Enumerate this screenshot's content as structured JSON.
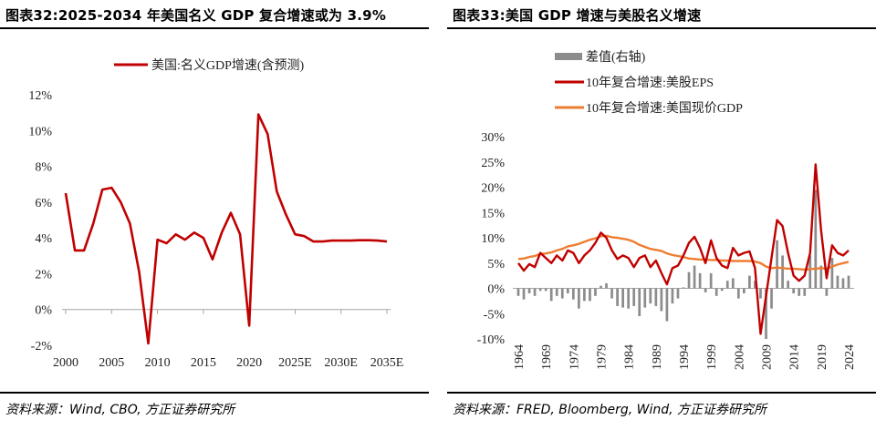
{
  "left": {
    "title": "图表32:2025-2034 年美国名义 GDP 复合增速或为 3.9%",
    "source": "资料来源：Wind, CBO, 方正证券研究所",
    "chart_data": {
      "type": "line",
      "title": "图表32:2025-2034 年美国名义 GDP 复合增速或为 3.9%",
      "xlabel": "",
      "ylabel": "",
      "ylim": [
        -2,
        12
      ],
      "yticks": [
        "12%",
        "10%",
        "8%",
        "6%",
        "4%",
        "2%",
        "0%",
        "-2%"
      ],
      "ytick_values": [
        12,
        10,
        8,
        6,
        4,
        2,
        0,
        -2
      ],
      "xticks": [
        "2000",
        "2005",
        "2010",
        "2015",
        "2020",
        "2025E",
        "2030E",
        "2035E"
      ],
      "xtick_values": [
        2000,
        2005,
        2010,
        2015,
        2020,
        2025,
        2030,
        2035
      ],
      "series": [
        {
          "name": "美国:名义GDP增速(含预测)",
          "color": "#c00000",
          "x": [
            2000,
            2001,
            2002,
            2003,
            2004,
            2005,
            2006,
            2007,
            2008,
            2009,
            2010,
            2011,
            2012,
            2013,
            2014,
            2015,
            2016,
            2017,
            2018,
            2019,
            2020,
            2021,
            2022,
            2023,
            2024,
            2025,
            2026,
            2027,
            2028,
            2029,
            2030,
            2031,
            2032,
            2033,
            2034,
            2035
          ],
          "values": [
            6.5,
            3.3,
            3.3,
            4.8,
            6.7,
            6.8,
            6.0,
            4.8,
            2.1,
            -1.9,
            3.9,
            3.7,
            4.2,
            3.9,
            4.3,
            4.0,
            2.8,
            4.3,
            5.4,
            4.2,
            -0.9,
            10.9,
            9.8,
            6.6,
            5.3,
            4.2,
            4.1,
            3.8,
            3.8,
            3.85,
            3.85,
            3.85,
            3.87,
            3.87,
            3.85,
            3.8
          ]
        }
      ]
    }
  },
  "right": {
    "title": "图表33:美国 GDP 增速与美股名义增速",
    "source": "资料来源：FRED, Bloomberg, Wind, 方正证券研究所",
    "chart_data": {
      "type": "line",
      "title": "图表33:美国 GDP 增速与美股名义增速",
      "xlabel": "",
      "ylabel": "",
      "ylim": [
        -10,
        30
      ],
      "yticks": [
        "30%",
        "25%",
        "20%",
        "15%",
        "10%",
        "5%",
        "0%",
        "-5%",
        "-10%"
      ],
      "ytick_values": [
        30,
        25,
        20,
        15,
        10,
        5,
        0,
        -5,
        -10
      ],
      "xticks": [
        "1964",
        "1969",
        "1974",
        "1979",
        "1984",
        "1989",
        "1994",
        "1999",
        "2004",
        "2009",
        "2014",
        "2019",
        "2024"
      ],
      "xtick_values": [
        1964,
        1969,
        1974,
        1979,
        1984,
        1989,
        1994,
        1999,
        2004,
        2009,
        2014,
        2019,
        2024
      ],
      "legend": [
        "差值(右轴)",
        "10年复合增速:美股EPS",
        "10年复合增速:美国现价GDP"
      ],
      "series": [
        {
          "name": "差值(右轴)",
          "kind": "bar",
          "color": "#8c8c8c",
          "x": [
            1964,
            1965,
            1966,
            1967,
            1968,
            1969,
            1970,
            1971,
            1972,
            1973,
            1974,
            1975,
            1976,
            1977,
            1978,
            1979,
            1980,
            1981,
            1982,
            1983,
            1984,
            1985,
            1986,
            1987,
            1988,
            1989,
            1990,
            1991,
            1992,
            1993,
            1994,
            1995,
            1996,
            1997,
            1998,
            1999,
            2000,
            2001,
            2002,
            2003,
            2004,
            2005,
            2006,
            2007,
            2008,
            2009,
            2010,
            2011,
            2012,
            2013,
            2014,
            2015,
            2016,
            2017,
            2018,
            2019,
            2020,
            2021,
            2022,
            2023,
            2024
          ],
          "values": [
            -1.5,
            -2.2,
            -1,
            -1.5,
            -0.5,
            -0.5,
            -2.5,
            -1.5,
            -2,
            -1,
            -2.2,
            -4,
            -2.5,
            -2.5,
            -1.5,
            0.5,
            1,
            -2,
            -3.5,
            -3.8,
            -4,
            -3.5,
            -5.5,
            -3.8,
            -3,
            -3.5,
            -4.5,
            -6.5,
            -3,
            -2,
            0.2,
            3.2,
            4.5,
            3,
            -0.8,
            3,
            -1.5,
            -0.5,
            1.5,
            2,
            -2,
            -1,
            2.5,
            1.5,
            -2,
            -10,
            -4,
            9.5,
            6.5,
            1.5,
            -1,
            -1.5,
            -1.5,
            6.5,
            19.5,
            4.5,
            -1.5,
            6,
            2.5,
            2,
            2.5
          ]
        },
        {
          "name": "10年复合增速:美股EPS",
          "kind": "line",
          "color": "#c00000",
          "x": [
            1964,
            1965,
            1966,
            1967,
            1968,
            1969,
            1970,
            1971,
            1972,
            1973,
            1974,
            1975,
            1976,
            1977,
            1978,
            1979,
            1980,
            1981,
            1982,
            1983,
            1984,
            1985,
            1986,
            1987,
            1988,
            1989,
            1990,
            1991,
            1992,
            1993,
            1994,
            1995,
            1996,
            1997,
            1998,
            1999,
            2000,
            2001,
            2002,
            2003,
            2004,
            2005,
            2006,
            2007,
            2008,
            2009,
            2010,
            2011,
            2012,
            2013,
            2014,
            2015,
            2016,
            2017,
            2018,
            2019,
            2020,
            2021,
            2022,
            2023,
            2024
          ],
          "values": [
            5,
            3.5,
            4.8,
            4.2,
            7,
            6,
            5,
            6.5,
            5.5,
            7.5,
            7,
            5,
            6.5,
            7.5,
            9,
            11,
            10,
            7.5,
            5.8,
            6.5,
            6,
            4.2,
            6,
            6.5,
            4.2,
            5.5,
            3,
            0.8,
            4,
            4.5,
            6.5,
            9,
            10.2,
            8,
            5,
            9.5,
            6,
            4.5,
            4,
            8,
            6.5,
            7,
            7.3,
            4,
            -9,
            -1.5,
            6,
            13.5,
            12.3,
            7,
            2.5,
            1.5,
            2.5,
            7,
            24.5,
            11.5,
            2,
            8.5,
            7,
            6.5,
            7.5
          ]
        },
        {
          "name": "10年复合增速:美国现价GDP",
          "kind": "line",
          "color": "#ed7d31",
          "x": [
            1964,
            1965,
            1966,
            1967,
            1968,
            1969,
            1970,
            1971,
            1972,
            1973,
            1974,
            1975,
            1976,
            1977,
            1978,
            1979,
            1980,
            1981,
            1982,
            1983,
            1984,
            1985,
            1986,
            1987,
            1988,
            1989,
            1990,
            1991,
            1992,
            1993,
            1994,
            1995,
            1996,
            1997,
            1998,
            1999,
            2000,
            2001,
            2002,
            2003,
            2004,
            2005,
            2006,
            2007,
            2008,
            2009,
            2010,
            2011,
            2012,
            2013,
            2014,
            2015,
            2016,
            2017,
            2018,
            2019,
            2020,
            2021,
            2022,
            2023,
            2024
          ],
          "values": [
            5.8,
            5.9,
            6.2,
            6.4,
            6.8,
            6.9,
            7.1,
            7.5,
            7.8,
            8.3,
            8.5,
            8.8,
            9.2,
            9.6,
            9.9,
            10.3,
            10.4,
            10.1,
            10,
            9.8,
            9.6,
            9.2,
            8.6,
            8.2,
            7.8,
            7.6,
            7.4,
            6.9,
            6.6,
            6.4,
            6.2,
            5.9,
            5.8,
            5.7,
            5.7,
            5.6,
            5.6,
            5.5,
            5.5,
            5.4,
            5.4,
            5.4,
            5.4,
            5.3,
            5.0,
            4.3,
            4.0,
            4.1,
            4.0,
            3.9,
            3.9,
            3.8,
            3.7,
            3.8,
            3.9,
            4.0,
            3.9,
            4.3,
            4.7,
            5.0,
            5.2
          ]
        }
      ]
    }
  }
}
